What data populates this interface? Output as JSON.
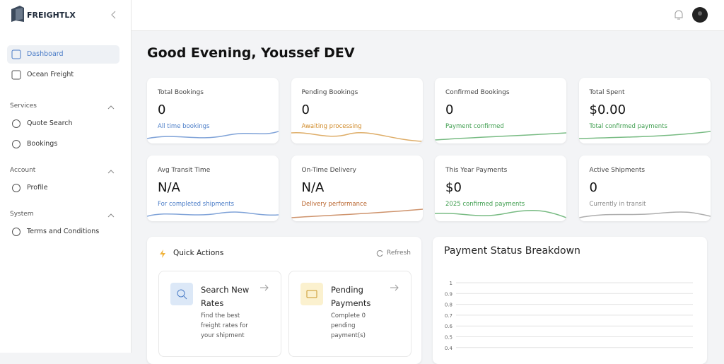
{
  "sidebar": {
    "logo": "FREIGHTLX",
    "items": [
      {
        "label": "Dashboard",
        "active": true
      },
      {
        "label": "Ocean Freight"
      }
    ],
    "sections": [
      {
        "title": "Services",
        "items": [
          "Quote Search",
          "Bookings"
        ]
      },
      {
        "title": "Account",
        "items": [
          "Profile"
        ]
      },
      {
        "title": "System",
        "items": [
          "Terms and Conditions"
        ]
      }
    ]
  },
  "greeting": "Good Evening, Youssef DEV",
  "cards": [
    {
      "label": "Total Bookings",
      "value": "0",
      "sub": "All time bookings",
      "color": "#4a7cc7"
    },
    {
      "label": "Pending Bookings",
      "value": "0",
      "sub": "Awaiting processing",
      "color": "#d08a28"
    },
    {
      "label": "Confirmed Bookings",
      "value": "0",
      "sub": "Payment confirmed",
      "color": "#3f9e4f"
    },
    {
      "label": "Total Spent",
      "value": "$0.00",
      "sub": "Total confirmed payments",
      "color": "#3f9e4f"
    },
    {
      "label": "Avg Transit Time",
      "value": "N/A",
      "sub": "For completed shipments",
      "color": "#4a7cc7"
    },
    {
      "label": "On-Time Delivery",
      "value": "N/A",
      "sub": "Delivery performance",
      "color": "#b9652e"
    },
    {
      "label": "This Year Payments",
      "value": "$0",
      "sub": "2025 confirmed payments",
      "color": "#3f9e4f"
    },
    {
      "label": "Active Shipments",
      "value": "0",
      "sub": "Currently in transit",
      "color": "#8a8a8a"
    }
  ],
  "quick_actions": {
    "title": "Quick Actions",
    "refresh": "Refresh",
    "items": [
      {
        "title": "Search New Rates",
        "desc": "Find the best freight rates for your shipment"
      },
      {
        "title": "Pending Payments",
        "desc": "Complete 0 pending payment(s)"
      }
    ]
  },
  "payment_chart": {
    "title": "Payment Status Breakdown",
    "ylim": [
      0,
      1
    ],
    "yticks": [
      1,
      0.9,
      0.8,
      0.7,
      0.6,
      0.5,
      0.4
    ]
  }
}
